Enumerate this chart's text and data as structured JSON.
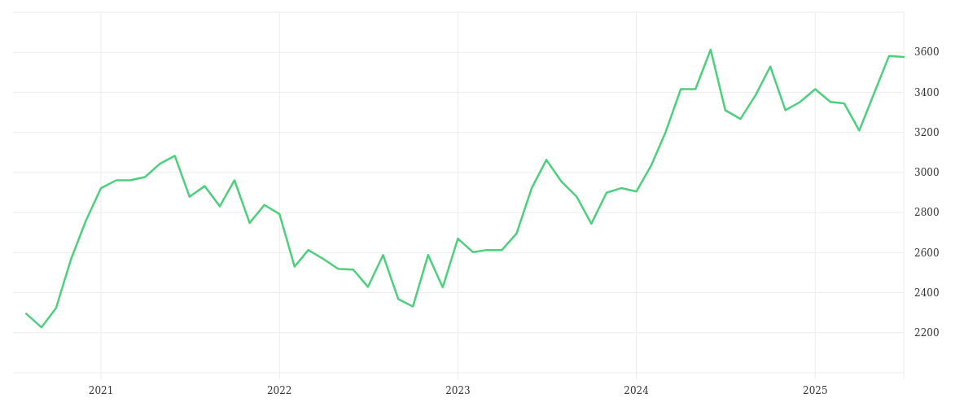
{
  "chart_data": {
    "type": "line",
    "x": [
      "2020-08",
      "2020-09",
      "2020-10",
      "2020-11",
      "2020-12",
      "2021-01",
      "2021-02",
      "2021-03",
      "2021-04",
      "2021-05",
      "2021-06",
      "2021-07",
      "2021-08",
      "2021-09",
      "2021-10",
      "2021-11",
      "2021-12",
      "2022-01",
      "2022-02",
      "2022-03",
      "2022-04",
      "2022-05",
      "2022-06",
      "2022-07",
      "2022-08",
      "2022-09",
      "2022-10",
      "2022-11",
      "2022-12",
      "2023-01",
      "2023-02",
      "2023-03",
      "2023-04",
      "2023-05",
      "2023-06",
      "2023-07",
      "2023-08",
      "2023-09",
      "2023-10",
      "2023-11",
      "2023-12",
      "2024-01",
      "2024-02",
      "2024-03",
      "2024-04",
      "2024-05",
      "2024-06",
      "2024-07",
      "2024-08",
      "2024-09",
      "2024-10",
      "2024-11",
      "2024-12",
      "2025-01",
      "2025-02",
      "2025-03",
      "2025-04",
      "2025-05",
      "2025-06",
      "2025-07"
    ],
    "series": [
      {
        "color": "#4cd07d",
        "values": [
          2295,
          2227,
          2323,
          2570,
          2759,
          2922,
          2961,
          2961,
          2977,
          3043,
          3083,
          2879,
          2932,
          2831,
          2961,
          2748,
          2838,
          2793,
          2530,
          2613,
          2568,
          2519,
          2515,
          2429,
          2588,
          2368,
          2331,
          2588,
          2427,
          2670,
          2602,
          2613,
          2613,
          2695,
          2922,
          3063,
          2954,
          2879,
          2744,
          2899,
          2922,
          2905,
          3038,
          3202,
          3416,
          3416,
          3613,
          3311,
          3267,
          3386,
          3529,
          3311,
          3352,
          3416,
          3352,
          3345,
          3209,
          3393,
          3582,
          3577
        ]
      }
    ],
    "xlim": [
      "2020-07-05",
      "2025-07-01"
    ],
    "xticks": [
      {
        "value": "2021-01",
        "label": "2021"
      },
      {
        "value": "2022-01",
        "label": "2022"
      },
      {
        "value": "2023-01",
        "label": "2023"
      },
      {
        "value": "2024-01",
        "label": "2024"
      },
      {
        "value": "2025-01",
        "label": "2025"
      }
    ],
    "ylim": [
      2000,
      3800
    ],
    "yticks": [
      {
        "value": 2000,
        "label": null
      },
      2200,
      2400,
      2600,
      2800,
      3000,
      3200,
      3400,
      3600,
      {
        "value": 3800,
        "label": null
      }
    ],
    "grid": true,
    "marker": "none",
    "line_style": "solid"
  }
}
